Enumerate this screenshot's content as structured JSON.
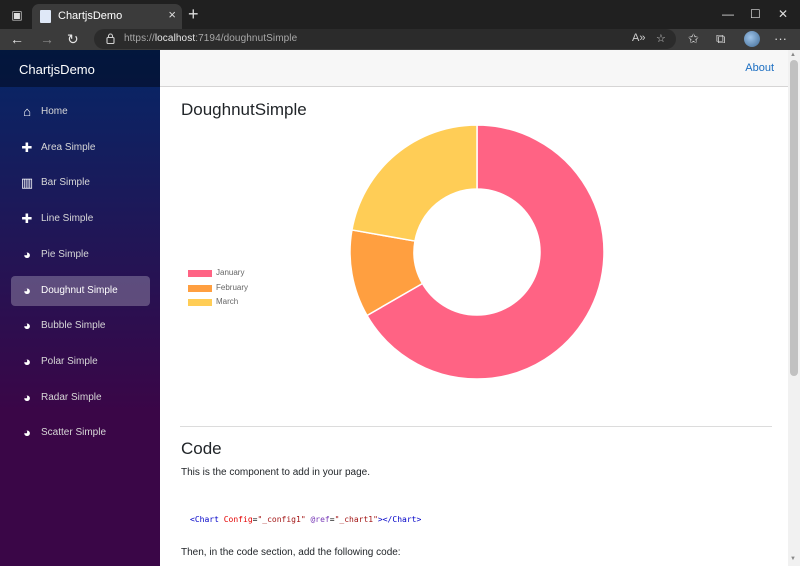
{
  "browser": {
    "tab_title": "ChartjsDemo",
    "url_prefix": "https://",
    "url_host": "localhost",
    "url_path": ":7194/doughnutSimple"
  },
  "sidebar": {
    "brand": "ChartjsDemo",
    "items": [
      {
        "label": "Home",
        "icon": "home-icon"
      },
      {
        "label": "Area Simple",
        "icon": "plus-icon"
      },
      {
        "label": "Bar Simple",
        "icon": "bar-chart-icon"
      },
      {
        "label": "Line Simple",
        "icon": "plus-icon"
      },
      {
        "label": "Pie Simple",
        "icon": "pie-chart-icon"
      },
      {
        "label": "Doughnut Simple",
        "icon": "pie-chart-icon"
      },
      {
        "label": "Bubble Simple",
        "icon": "pie-chart-icon"
      },
      {
        "label": "Polar Simple",
        "icon": "pie-chart-icon"
      },
      {
        "label": "Radar Simple",
        "icon": "pie-chart-icon"
      },
      {
        "label": "Scatter Simple",
        "icon": "pie-chart-icon"
      }
    ],
    "active_index": 5
  },
  "topbar": {
    "about": "About"
  },
  "main": {
    "title": "DoughnutSimple",
    "code_heading": "Code",
    "code_intro": "This is the component to add in your page.",
    "code_tag_open": "<Chart",
    "code_attr1": "Config",
    "code_val1": "\"_config1\"",
    "code_attr2": "@ref",
    "code_val2": "\"_chart1\"",
    "code_tag_close": "></Chart>",
    "code_followup": "Then, in the code section, add the following code:"
  },
  "chart_data": {
    "type": "doughnut",
    "categories": [
      "January",
      "February",
      "March"
    ],
    "values": [
      300,
      50,
      100
    ],
    "colors": [
      "#ff6384",
      "#ff9f40",
      "#ffcd56"
    ],
    "legend_position": "left"
  }
}
